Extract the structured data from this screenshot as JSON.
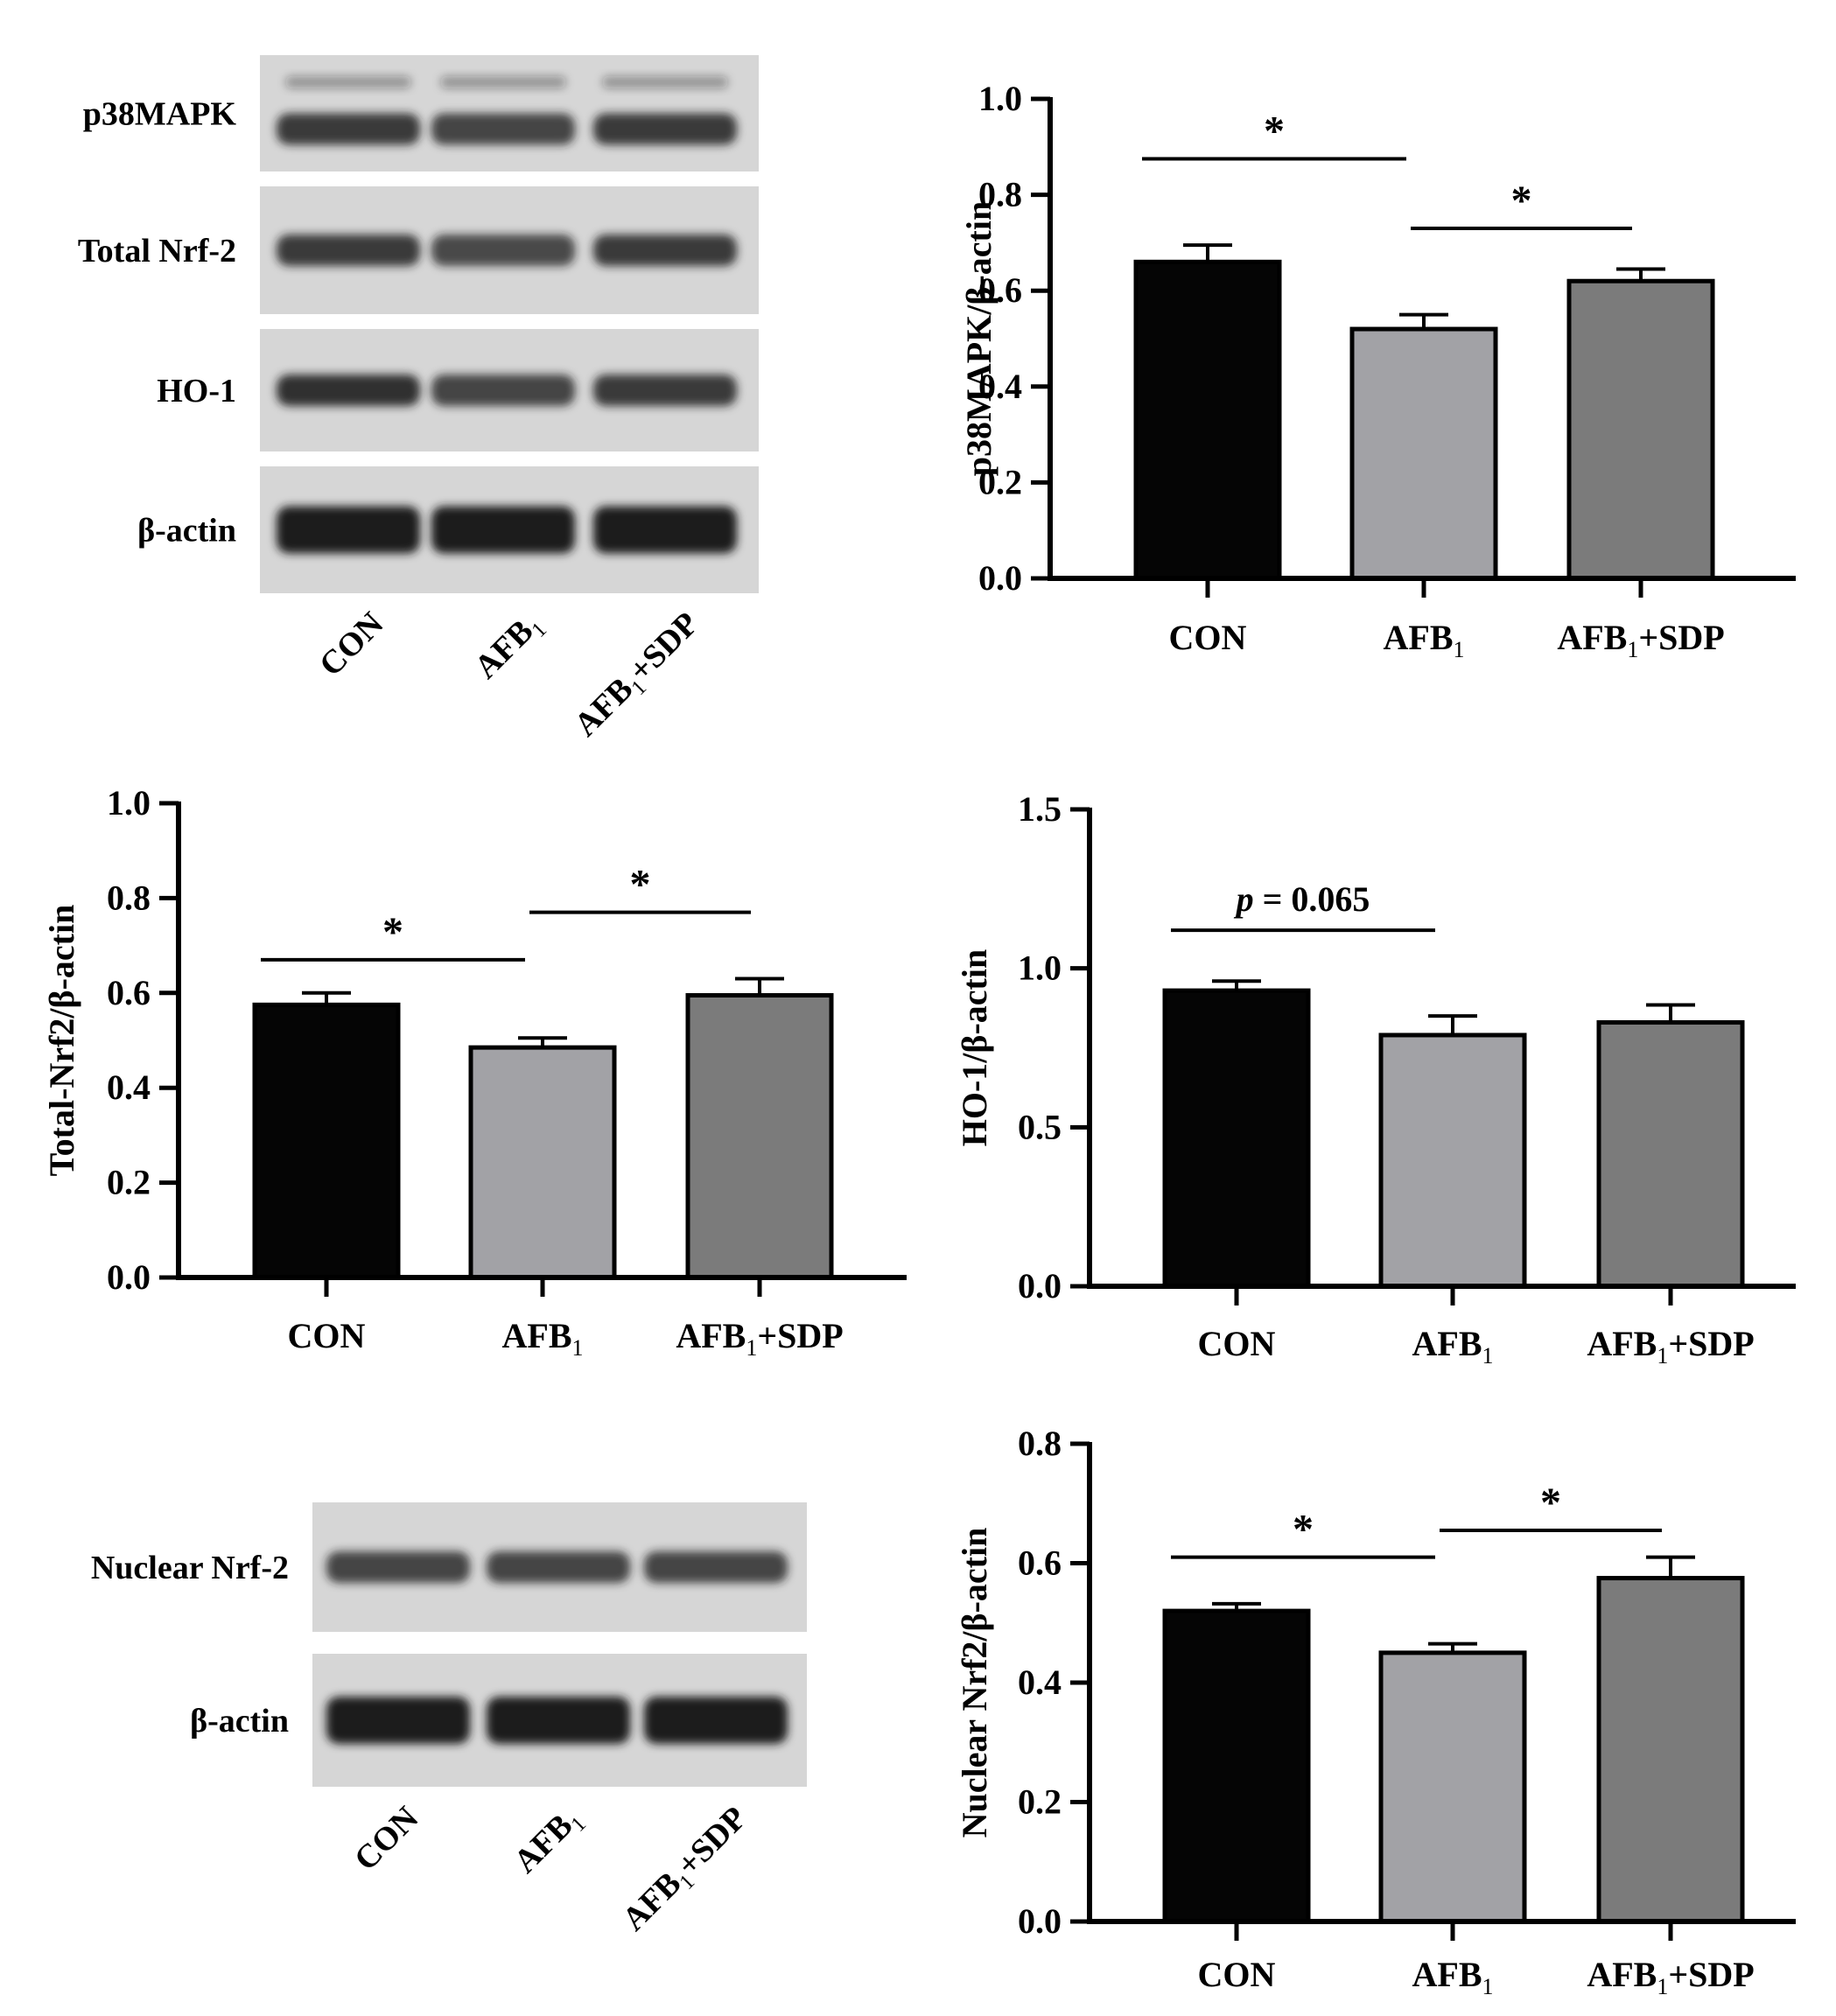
{
  "colors": {
    "CON": "#050505",
    "AFB1": "#a2a2a6",
    "AFB1_SDP": "#7b7b7b",
    "axis": "#000000",
    "blot_bg": "#d6d6d6",
    "band": "#1e1e1e"
  },
  "blots": [
    {
      "id": "blot-top",
      "rows": [
        {
          "label": "p38MAPK",
          "bands": [
            0.85,
            0.8,
            0.85
          ],
          "faint_upper": true
        },
        {
          "label": "Total Nrf-2",
          "bands": [
            0.85,
            0.75,
            0.85
          ],
          "faint_upper": false
        },
        {
          "label": "HO-1",
          "bands": [
            0.9,
            0.8,
            0.85
          ],
          "faint_upper": false
        },
        {
          "label": "β-actin",
          "bands": [
            1.0,
            1.0,
            1.0
          ],
          "faint_upper": false
        }
      ],
      "lanes": [
        {
          "main": "CON",
          "sub": "",
          "tail": ""
        },
        {
          "main": "AFB",
          "sub": "1",
          "tail": ""
        },
        {
          "main": "AFB",
          "sub": "1",
          "tail": "+SDP"
        }
      ]
    },
    {
      "id": "blot-bottom",
      "rows": [
        {
          "label": "Nuclear Nrf-2",
          "bands": [
            0.8,
            0.8,
            0.8
          ],
          "faint_upper": false
        },
        {
          "label": "β-actin",
          "bands": [
            1.0,
            1.0,
            1.0
          ],
          "faint_upper": false
        }
      ],
      "lanes": [
        {
          "main": "CON",
          "sub": "",
          "tail": ""
        },
        {
          "main": "AFB",
          "sub": "1",
          "tail": ""
        },
        {
          "main": "AFB",
          "sub": "1",
          "tail": "+SDP"
        }
      ]
    }
  ],
  "chart_data": [
    {
      "id": "chart-p38",
      "type": "bar",
      "ylabel": "p38MAPK/β-actin",
      "ylim": [
        0,
        1.0
      ],
      "yticks": [
        "0.0",
        "0.2",
        "0.4",
        "0.6",
        "0.8",
        "1.0"
      ],
      "categories": [
        {
          "main": "CON",
          "sub": "",
          "tail": ""
        },
        {
          "main": "AFB",
          "sub": "1",
          "tail": ""
        },
        {
          "main": "AFB",
          "sub": "1",
          "tail": "+SDP"
        }
      ],
      "values": [
        0.66,
        0.52,
        0.62
      ],
      "errors": [
        0.035,
        0.03,
        0.025
      ],
      "annotations": [
        {
          "from": 0,
          "to": 1,
          "y": 0.875,
          "text": "*",
          "italic_p": false
        },
        {
          "from": 1,
          "to": 2,
          "y": 0.73,
          "text": "*",
          "italic_p": false
        }
      ]
    },
    {
      "id": "chart-total-nrf2",
      "type": "bar",
      "ylabel": "Total-Nrf2/β-actin",
      "ylim": [
        0,
        1.0
      ],
      "yticks": [
        "0.0",
        "0.2",
        "0.4",
        "0.6",
        "0.8",
        "1.0"
      ],
      "categories": [
        {
          "main": "CON",
          "sub": "",
          "tail": ""
        },
        {
          "main": "AFB",
          "sub": "1",
          "tail": ""
        },
        {
          "main": "AFB",
          "sub": "1",
          "tail": "+SDP"
        }
      ],
      "values": [
        0.575,
        0.485,
        0.595
      ],
      "errors": [
        0.025,
        0.02,
        0.035
      ],
      "annotations": [
        {
          "from": 0,
          "to": 1,
          "y": 0.67,
          "text": "*",
          "italic_p": false
        },
        {
          "from": 1,
          "to": 2,
          "y": 0.77,
          "text": "*",
          "italic_p": false
        }
      ]
    },
    {
      "id": "chart-ho1",
      "type": "bar",
      "ylabel": "HO-1/β-actin",
      "ylim": [
        0,
        1.5
      ],
      "yticks": [
        "0.0",
        "0.5",
        "1.0",
        "1.5"
      ],
      "categories": [
        {
          "main": "CON",
          "sub": "",
          "tail": ""
        },
        {
          "main": "AFB",
          "sub": "1",
          "tail": ""
        },
        {
          "main": "AFB",
          "sub": "1",
          "tail": "+SDP"
        }
      ],
      "values": [
        0.93,
        0.79,
        0.83
      ],
      "errors": [
        0.03,
        0.06,
        0.055
      ],
      "annotations": [
        {
          "from": 0,
          "to": 1,
          "y": 1.12,
          "text": "= 0.065",
          "italic_p": true
        }
      ]
    },
    {
      "id": "chart-nuclear-nrf2",
      "type": "bar",
      "ylabel": "Nuclear Nrf2/β-actin",
      "ylim": [
        0,
        0.8
      ],
      "yticks": [
        "0.0",
        "0.2",
        "0.4",
        "0.6",
        "0.8"
      ],
      "categories": [
        {
          "main": "CON",
          "sub": "",
          "tail": ""
        },
        {
          "main": "AFB",
          "sub": "1",
          "tail": ""
        },
        {
          "main": "AFB",
          "sub": "1",
          "tail": "+SDP"
        }
      ],
      "values": [
        0.52,
        0.45,
        0.575
      ],
      "errors": [
        0.012,
        0.015,
        0.035
      ],
      "annotations": [
        {
          "from": 0,
          "to": 1,
          "y": 0.61,
          "text": "*",
          "italic_p": false
        },
        {
          "from": 1,
          "to": 2,
          "y": 0.655,
          "text": "*",
          "italic_p": false
        }
      ]
    }
  ]
}
